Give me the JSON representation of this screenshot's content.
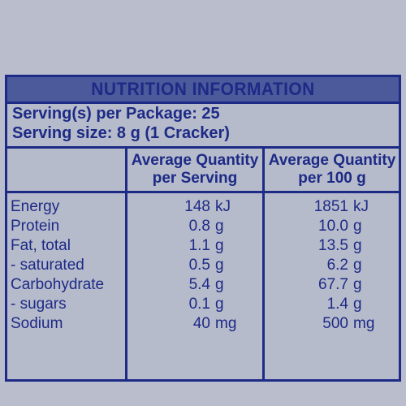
{
  "title": "NUTRITION INFORMATION",
  "servings_per_package": "Serving(s) per Package: 25",
  "serving_size": "Serving size: 8 g (1 Cracker)",
  "columns": {
    "per_serving": [
      "Average Quantity",
      "per Serving"
    ],
    "per_100g": [
      "Average Quantity",
      "per 100 g"
    ]
  },
  "rows": [
    {
      "label": "Energy",
      "serving_num": "148",
      "serving_unit": "kJ",
      "hundred_num": "1851",
      "hundred_unit": "kJ"
    },
    {
      "label": "Protein",
      "serving_num": "0.8",
      "serving_unit": "g",
      "hundred_num": "10.0",
      "hundred_unit": "g"
    },
    {
      "label": "Fat, total",
      "serving_num": "1.1",
      "serving_unit": "g",
      "hundred_num": "13.5",
      "hundred_unit": "g"
    },
    {
      "label": "- saturated",
      "serving_num": "0.5",
      "serving_unit": "g",
      "hundred_num": "6.2",
      "hundred_unit": "g"
    },
    {
      "label": "Carbohydrate",
      "serving_num": "5.4",
      "serving_unit": "g",
      "hundred_num": "67.7",
      "hundred_unit": "g"
    },
    {
      "label": "- sugars",
      "serving_num": "0.1",
      "serving_unit": "g",
      "hundred_num": "1.4",
      "hundred_unit": "g"
    },
    {
      "label": "Sodium",
      "serving_num": "40",
      "serving_unit": "mg",
      "hundred_num": "500",
      "hundred_unit": "mg"
    }
  ],
  "colors": {
    "ink": "#1d2a86",
    "title_bg": "#4c5a9c",
    "panel_bg": "#b6bbcb"
  }
}
